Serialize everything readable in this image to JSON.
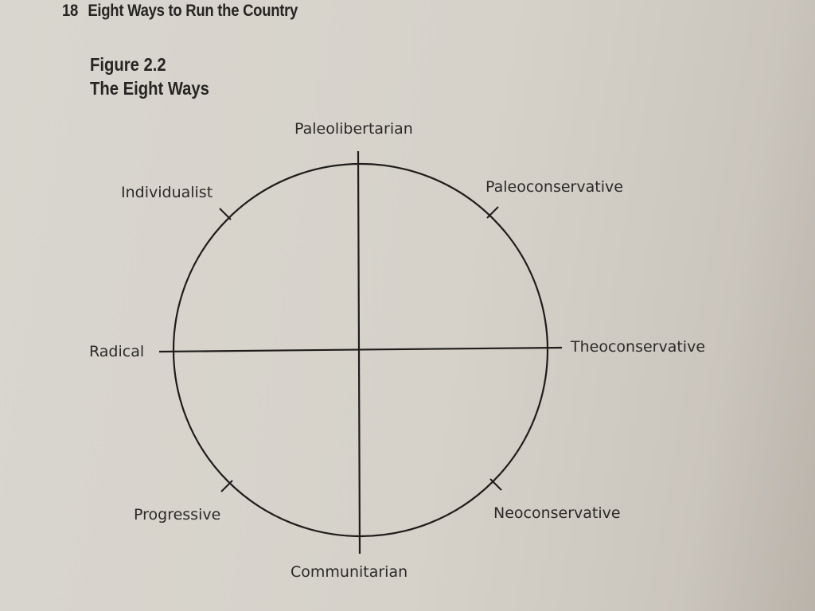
{
  "page": {
    "number": "18",
    "running_title": "Eight Ways to Run the Country"
  },
  "figure": {
    "number": "Figure 2.2",
    "title": "The Eight Ways"
  },
  "diagram": {
    "labels": {
      "top": "Paleolibertarian",
      "top_left": "Individualist",
      "top_right": "Paleoconservative",
      "left": "Radical",
      "right": "Theoconservative",
      "bottom_left": "Progressive",
      "bottom_right": "Neoconservative",
      "bottom": "Communitarian"
    },
    "line_color": "#1e1d1b"
  }
}
